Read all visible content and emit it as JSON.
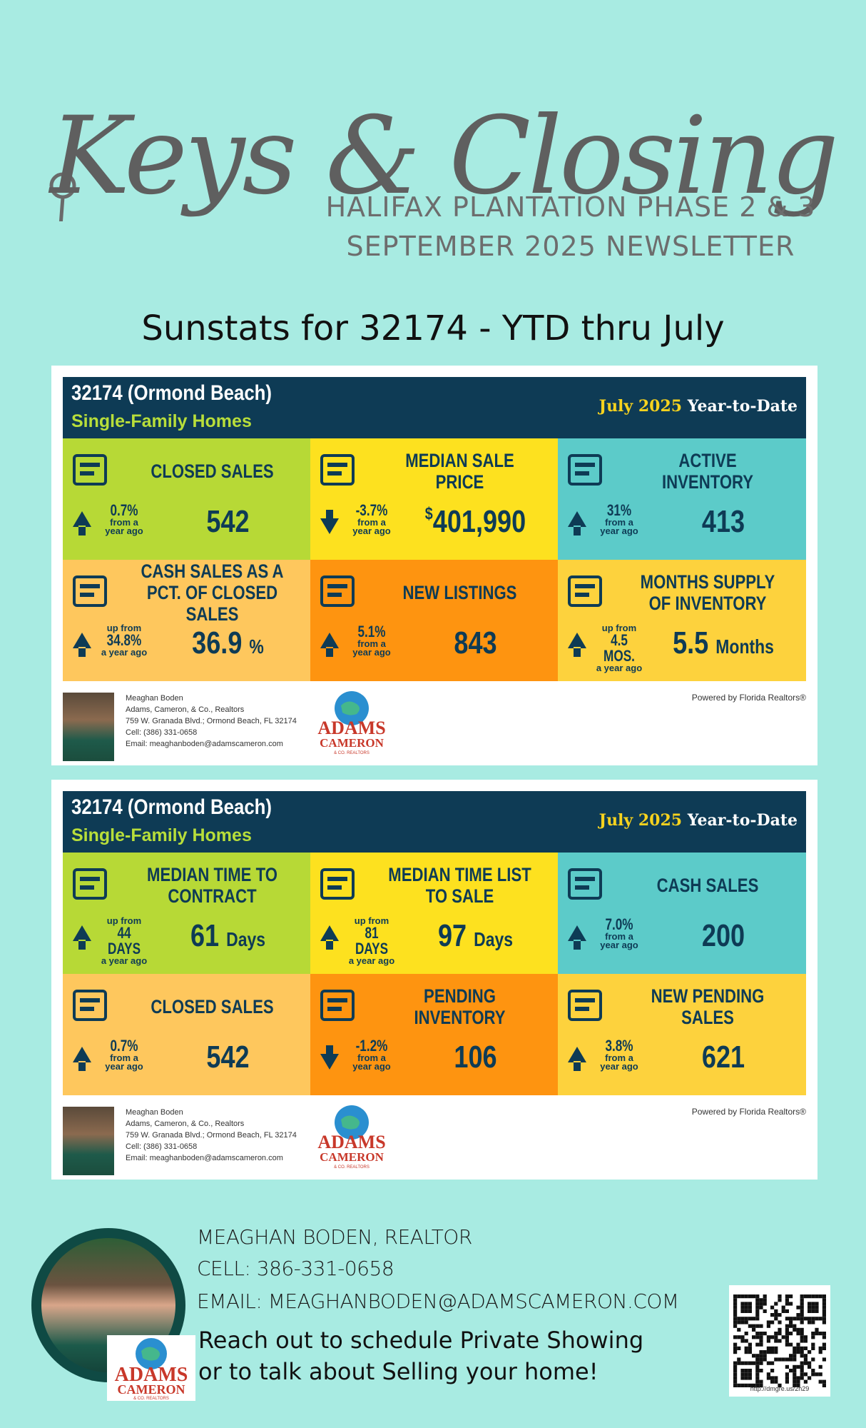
{
  "header": {
    "title": "Keys & Closings",
    "subtitle_line1": "HALIFAX PLANTATION PHASE 2 & 3",
    "subtitle_line2": "SEPTEMBER 2025 NEWSLETTER",
    "sunstats": "Sunstats for 32174 - YTD thru July"
  },
  "colors": {
    "background": "#a8ebe2",
    "navy": "#0e3b55",
    "lime": "#b7d936",
    "yellow": "#fde11f",
    "teal": "#5ccbc9",
    "light_orange": "#fec75d",
    "orange": "#fe9410",
    "gold": "#fdd23d"
  },
  "card1": {
    "location": "32174 (Ormond Beach)",
    "type": "Single-Family Homes",
    "period_month": "July 2025",
    "period_suffix": "Year-to-Date",
    "metrics": [
      {
        "label": "CLOSED SALES",
        "icon": "keys-icon",
        "direction": "up",
        "change": "0.7%",
        "change_note_1": "from a",
        "change_note_2": "year ago",
        "value": "542",
        "unit": ""
      },
      {
        "label": "MEDIAN SALE PRICE",
        "icon": "abacus-icon",
        "direction": "down",
        "change": "-3.7%",
        "change_note_1": "from a",
        "change_note_2": "year ago",
        "value_prefix": "$",
        "value": "401,990",
        "unit": ""
      },
      {
        "label": "ACTIVE INVENTORY",
        "icon": "houses-icon",
        "direction": "up",
        "change": "31%",
        "change_note_1": "from a",
        "change_note_2": "year ago",
        "value": "413",
        "unit": ""
      },
      {
        "label": "CASH SALES AS A PCT. OF CLOSED SALES",
        "icon": "cash-percent-icon",
        "direction": "up",
        "change_pre": "up from",
        "change": "34.8%",
        "change_note_2": "a year ago",
        "value": "36.9",
        "unit": "%"
      },
      {
        "label": "NEW LISTINGS",
        "icon": "house-sign-icon",
        "direction": "up",
        "change": "5.1%",
        "change_note_1": "from a",
        "change_note_2": "year ago",
        "value": "843",
        "unit": ""
      },
      {
        "label": "MONTHS SUPPLY OF INVENTORY",
        "icon": "calendar-icon",
        "direction": "up",
        "change_pre": "up from",
        "change": "4.5 MOS.",
        "change_note_2": "a year ago",
        "value": "5.5",
        "unit": "Months"
      }
    ]
  },
  "card2": {
    "location": "32174 (Ormond Beach)",
    "type": "Single-Family Homes",
    "period_month": "July 2025",
    "period_suffix": "Year-to-Date",
    "metrics": [
      {
        "label": "MEDIAN TIME TO CONTRACT",
        "icon": "document-clock-icon",
        "direction": "up",
        "change_pre": "up from",
        "change": "44 DAYS",
        "change_note_2": "a year ago",
        "value": "61",
        "unit": "Days"
      },
      {
        "label": "MEDIAN TIME LIST TO SALE",
        "icon": "keys-clock-icon",
        "direction": "up",
        "change_pre": "up from",
        "change": "81 DAYS",
        "change_note_2": "a year ago",
        "value": "97",
        "unit": "Days"
      },
      {
        "label": "CASH SALES",
        "icon": "cash-icon",
        "direction": "up",
        "change": "7.0%",
        "change_note_1": "from a",
        "change_note_2": "year ago",
        "value": "200",
        "unit": ""
      },
      {
        "label": "CLOSED SALES",
        "icon": "keys-icon",
        "direction": "up",
        "change": "0.7%",
        "change_note_1": "from a",
        "change_note_2": "year ago",
        "value": "542",
        "unit": ""
      },
      {
        "label": "PENDING INVENTORY",
        "icon": "cart-house-icon",
        "direction": "down",
        "change": "-1.2%",
        "change_note_1": "from a",
        "change_note_2": "year ago",
        "value": "106",
        "unit": ""
      },
      {
        "label": "NEW PENDING SALES",
        "icon": "document-icon",
        "direction": "up",
        "change": "3.8%",
        "change_note_1": "from a",
        "change_note_2": "year ago",
        "value": "621",
        "unit": ""
      }
    ]
  },
  "agent_block": {
    "name": "Meaghan Boden",
    "company": "Adams, Cameron, & Co., Realtors",
    "address": "759 W. Granada Blvd.; Ormond Beach, FL 32174",
    "cell": "Cell: (386) 331-0658",
    "email": "Email: meaghanboden@adamscameron.com",
    "powered": "Powered by Florida Realtors®",
    "logo_line1": "ADAMS",
    "logo_line2": "CAMERON",
    "logo_line3": "& CO. REALTORS"
  },
  "footer": {
    "name": "MEAGHAN BODEN, REALTOR",
    "cell": "CELL: 386-331-0658",
    "email": "EMAIL: MEAGHANBODEN@ADAMSCAMERON.COM",
    "cta1": "Reach out to schedule Private Showing",
    "cta2": "or to talk about Selling your home!",
    "qr_url": "http://dmgre.us/2h29"
  }
}
